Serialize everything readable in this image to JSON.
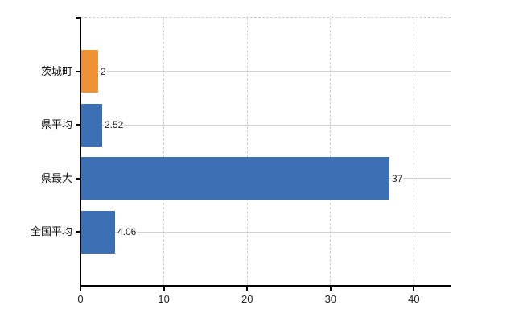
{
  "chart_data": {
    "type": "bar",
    "orientation": "horizontal",
    "title": "",
    "xlabel": "",
    "ylabel": "",
    "categories": [
      "茨城町",
      "県平均",
      "県最大",
      "全国平均"
    ],
    "values": [
      2,
      2.52,
      37,
      4.06
    ],
    "value_labels": [
      "2",
      "2.52",
      "37",
      "4.06"
    ],
    "bar_colors": [
      "#ef9237",
      "#3c6fb4",
      "#3c6fb4",
      "#3c6fb4"
    ],
    "x_ticks": [
      0,
      10,
      20,
      30,
      40
    ],
    "x_tick_labels": [
      "0",
      "10",
      "20",
      "30",
      "40"
    ],
    "xlim": [
      0,
      44.4
    ],
    "grid": "on",
    "legend": "none"
  },
  "colors": {
    "highlight_bar": "#ef9237",
    "default_bar": "#3c6fb4",
    "axis": "#000000",
    "dashed_gridline": "#d2ced2",
    "category_gridline": "#ccd3cb",
    "background": "#ffffff",
    "text": "#222222"
  }
}
